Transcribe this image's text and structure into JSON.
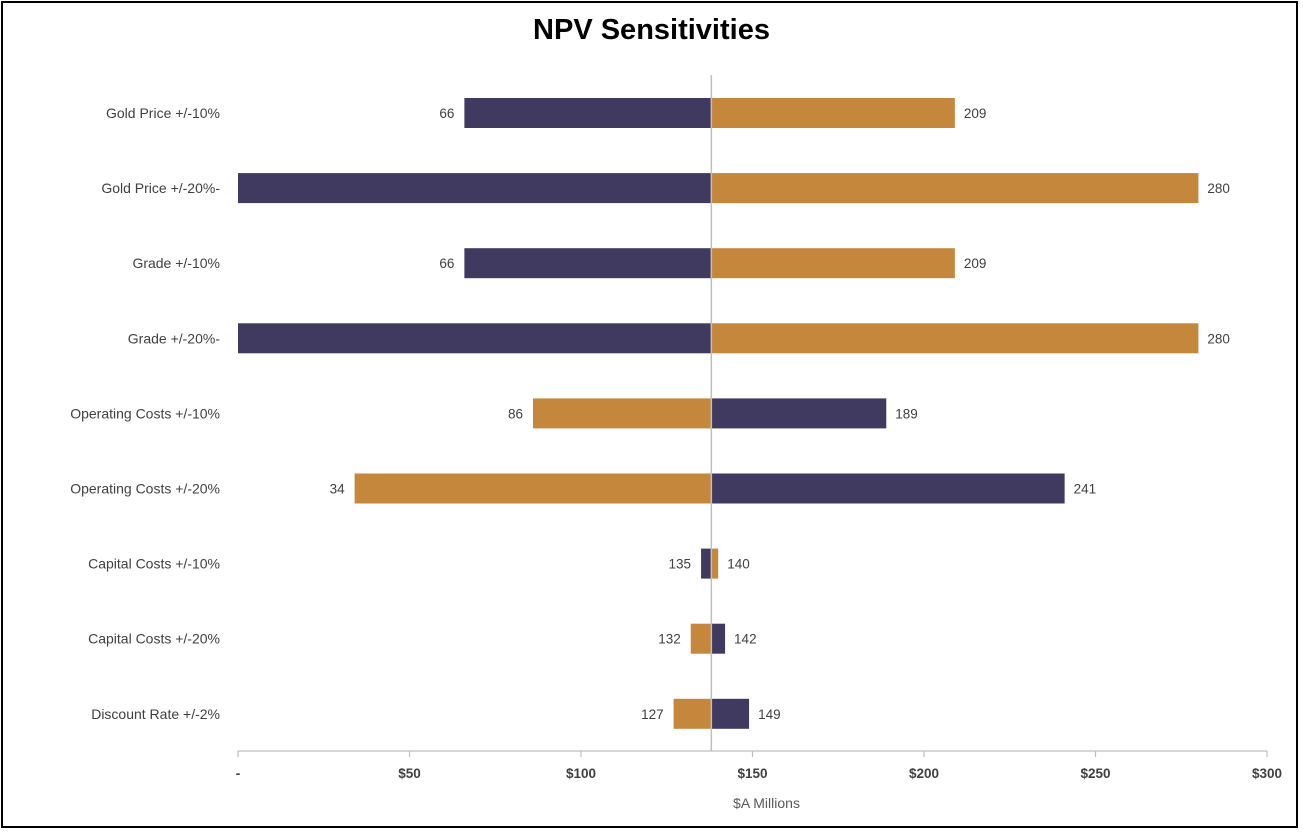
{
  "chart_data": {
    "type": "bar",
    "orientation": "horizontal-tornado",
    "title": "NPV Sensitivities",
    "xlabel": "$A Millions",
    "xlim": [
      0,
      300
    ],
    "base": 138,
    "x_ticks": [
      "-",
      "$50",
      "$100",
      "$150",
      "$200",
      "$250",
      "$300"
    ],
    "x_tick_values": [
      0,
      50,
      100,
      150,
      200,
      250,
      300
    ],
    "colors": {
      "purple": "#403a61",
      "gold": "#c4873b",
      "center_line": "#bfbfbf"
    },
    "rows": [
      {
        "label": "Gold Price +/-10%",
        "low": 66,
        "high": 209,
        "low_label": "66",
        "high_label": "209",
        "low_color": "purple",
        "high_color": "gold"
      },
      {
        "label": "Gold Price +/-20%-",
        "low": 0,
        "high": 280,
        "low_label": "",
        "high_label": "280",
        "low_color": "purple",
        "high_color": "gold"
      },
      {
        "label": "Grade +/-10%",
        "low": 66,
        "high": 209,
        "low_label": "66",
        "high_label": "209",
        "low_color": "purple",
        "high_color": "gold"
      },
      {
        "label": "Grade +/-20%-",
        "low": 0,
        "high": 280,
        "low_label": "",
        "high_label": "280",
        "low_color": "purple",
        "high_color": "gold"
      },
      {
        "label": "Operating Costs +/-10%",
        "low": 86,
        "high": 189,
        "low_label": "86",
        "high_label": "189",
        "low_color": "gold",
        "high_color": "purple"
      },
      {
        "label": "Operating Costs +/-20%",
        "low": 34,
        "high": 241,
        "low_label": "34",
        "high_label": "241",
        "low_color": "gold",
        "high_color": "purple"
      },
      {
        "label": "Capital Costs +/-10%",
        "low": 135,
        "high": 140,
        "low_label": "135",
        "high_label": "140",
        "low_color": "purple",
        "high_color": "gold"
      },
      {
        "label": "Capital Costs +/-20%",
        "low": 132,
        "high": 142,
        "low_label": "132",
        "high_label": "142",
        "low_color": "gold",
        "high_color": "purple"
      },
      {
        "label": "Discount Rate +/-2%",
        "low": 127,
        "high": 149,
        "low_label": "127",
        "high_label": "149",
        "low_color": "gold",
        "high_color": "purple"
      }
    ]
  }
}
